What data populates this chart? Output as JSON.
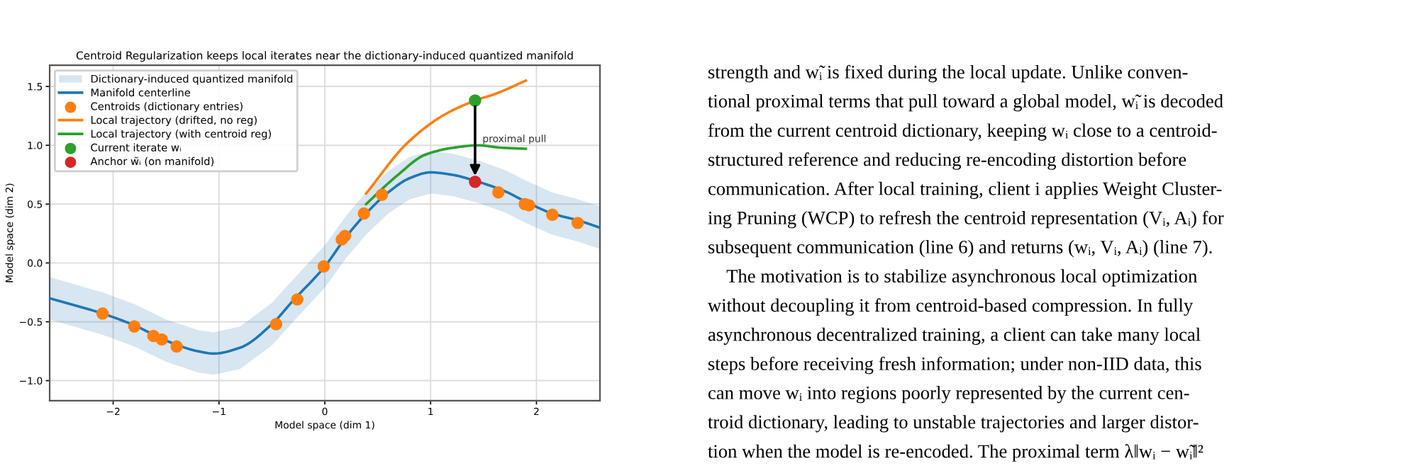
{
  "chart_data": {
    "type": "line",
    "title": "Centroid Regularization keeps local iterates near the dictionary-induced quantized manifold",
    "xlabel": "Model space (dim 1)",
    "ylabel": "Model space (dim 2)",
    "xlim": [
      -2.6,
      2.6
    ],
    "ylim": [
      -1.17,
      1.68
    ],
    "xticks": [
      {
        "value": -2,
        "label": "−2"
      },
      {
        "value": -1,
        "label": "−1"
      },
      0,
      1,
      2
    ],
    "yticks": [
      {
        "value": -1.0,
        "label": "−1.0"
      },
      {
        "value": -0.5,
        "label": "−0.5"
      },
      {
        "value": 0.0,
        "label": "0.0"
      },
      {
        "value": 0.5,
        "label": "0.5"
      },
      {
        "value": 1.0,
        "label": "1.0"
      },
      {
        "value": 1.5,
        "label": "1.5"
      }
    ],
    "grid": true,
    "legend": "top left",
    "series": [
      {
        "name": "Dictionary-induced quantized manifold",
        "type": "area",
        "color": "#1f77b4"
      },
      {
        "name": "Manifold centerline",
        "type": "line",
        "color": "#1f77b4",
        "x": [
          -2.6,
          -2.1,
          -1.8,
          -1.5,
          -1.2,
          -1.05,
          -0.8,
          -0.5,
          -0.3,
          0,
          0.2,
          0.4,
          0.6,
          0.8,
          1.0,
          1.2,
          1.45,
          1.7,
          1.9,
          2.15,
          2.4,
          2.6
        ],
        "values": [
          -0.3,
          -0.43,
          -0.53,
          -0.66,
          -0.75,
          -0.77,
          -0.72,
          -0.52,
          -0.32,
          -0.03,
          0.22,
          0.43,
          0.6,
          0.72,
          0.77,
          0.75,
          0.69,
          0.61,
          0.52,
          0.42,
          0.36,
          0.3
        ],
        "lower": [
          -0.48,
          -0.61,
          -0.71,
          -0.84,
          -0.93,
          -0.95,
          -0.9,
          -0.7,
          -0.5,
          -0.21,
          0.04,
          0.25,
          0.42,
          0.54,
          0.59,
          0.57,
          0.51,
          0.43,
          0.34,
          0.24,
          0.18,
          0.12
        ],
        "upper": [
          -0.12,
          -0.25,
          -0.35,
          -0.48,
          -0.57,
          -0.59,
          -0.54,
          -0.34,
          -0.14,
          0.15,
          0.4,
          0.61,
          0.78,
          0.9,
          0.95,
          0.93,
          0.87,
          0.79,
          0.7,
          0.6,
          0.54,
          0.48
        ]
      },
      {
        "name": "Centroids (dictionary entries)",
        "type": "scatter",
        "marker": "circle",
        "color": "#ff7f0e",
        "x": [
          -2.1,
          -1.8,
          -1.62,
          -1.54,
          -1.4,
          -0.46,
          -0.26,
          -0.01,
          0.16,
          0.19,
          0.37,
          0.54,
          1.64,
          1.89,
          1.93,
          2.15,
          2.39
        ],
        "values": [
          -0.43,
          -0.54,
          -0.62,
          -0.65,
          -0.71,
          -0.52,
          -0.31,
          -0.03,
          0.2,
          0.23,
          0.42,
          0.58,
          0.6,
          0.5,
          0.49,
          0.41,
          0.34
        ]
      },
      {
        "name": "Local trajectory (drifted, no reg)",
        "type": "line",
        "color": "#ff7f0e",
        "x": [
          0.39,
          0.78,
          1.13,
          1.42,
          1.62,
          1.9
        ],
        "values": [
          0.59,
          1.02,
          1.26,
          1.38,
          1.44,
          1.55
        ]
      },
      {
        "name": "Local trajectory (with centroid reg)",
        "type": "line",
        "color": "#2ca02c",
        "x": [
          0.39,
          0.68,
          0.95,
          1.22,
          1.45,
          1.66,
          1.9
        ],
        "values": [
          0.5,
          0.74,
          0.92,
          0.98,
          1.0,
          0.98,
          0.97
        ]
      },
      {
        "name": "Current iterate wᵢ",
        "type": "scatter",
        "marker": "circle",
        "color": "#2ca02c",
        "x": [
          1.42
        ],
        "values": [
          1.38
        ]
      },
      {
        "name": "Anchor w̃ᵢ (on manifold)",
        "type": "scatter",
        "marker": "circle",
        "color": "#d62728",
        "x": [
          1.42
        ],
        "values": [
          0.69
        ]
      }
    ],
    "annotations": [
      {
        "text": "proximal pull",
        "x": 1.49,
        "y": 1.05
      },
      "strength and w̃ᵢ is fixed during the local update. Unlike conven-",
      "tional proximal terms that pull toward a global model, w̃ᵢ is decoded",
      "from the current centroid dictionary, keeping wᵢ close to a centroid-",
      "structured reference and reducing re-encoding distortion before",
      "communication. After local training, client i applies Weight Cluster-",
      "ing Pruning (WCP) to refresh the centroid representation (Vᵢ, Aᵢ) for",
      "subsequent communication (line 6) and returns (wᵢ, Vᵢ, Aᵢ) (line 7).",
      "    The motivation is to stabilize asynchronous local optimization",
      "without decoupling it from centroid-based compression. In fully",
      "asynchronous decentralized training, a client can take many local",
      "steps before receiving fresh information; under non-IID data, this",
      "can move wᵢ into regions poorly represented by the current cen-",
      "troid dictionary, leading to unstable trajectories and larger distor-",
      "tion when the model is re-encoded. The proximal term λ‖wᵢ − w̃ᵢ‖²"
    ]
  }
}
